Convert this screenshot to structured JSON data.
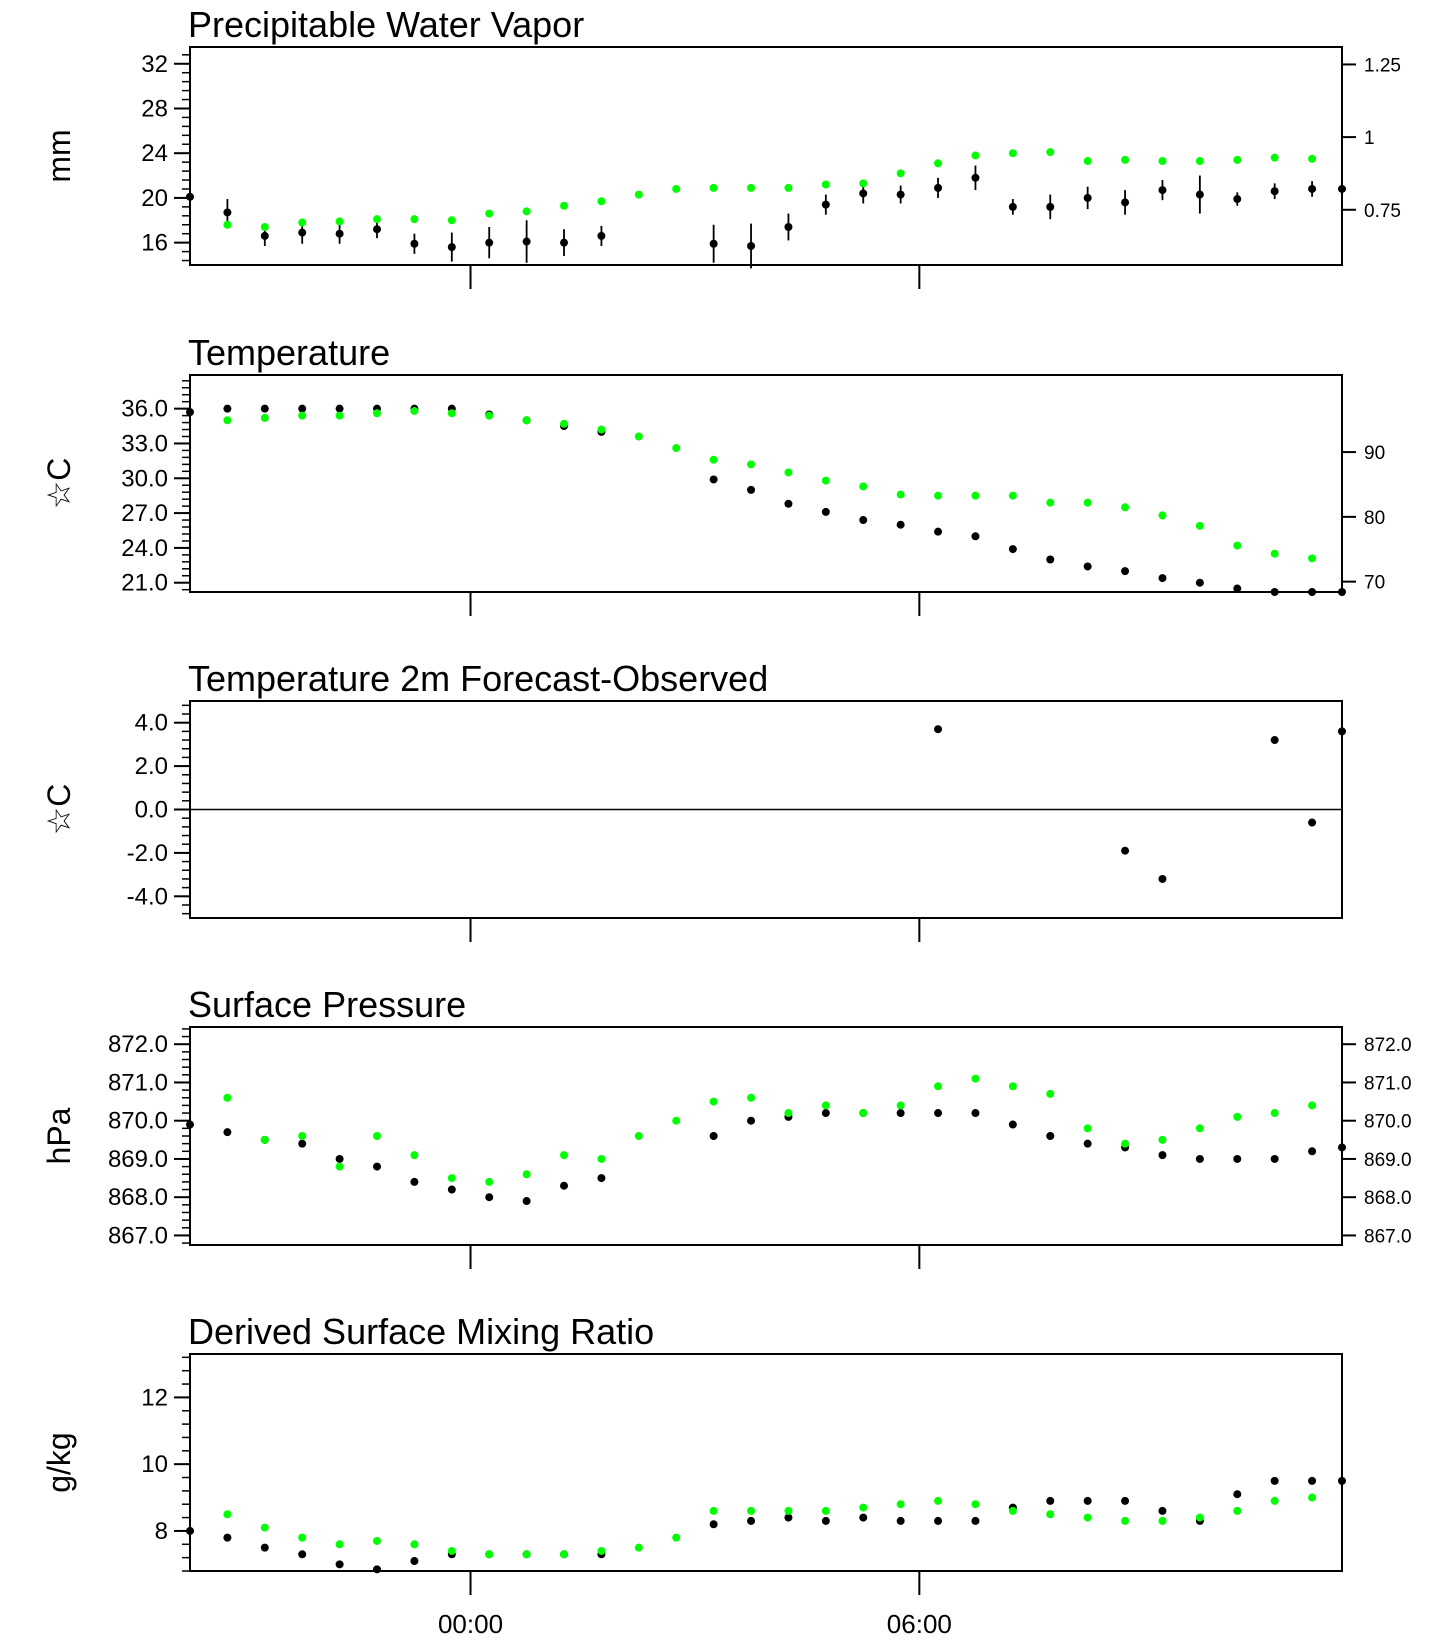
{
  "x_axis": {
    "ticks": [
      {
        "label": "00:00",
        "x": 18
      },
      {
        "label": "06:00",
        "x": 24
      }
    ],
    "range": [
      14.25,
      29.65
    ],
    "observations": [
      14.25,
      14.75,
      15.25,
      15.75,
      16.25,
      16.75,
      17.25,
      17.75,
      18.25,
      18.75,
      19.25,
      19.75,
      20.25,
      20.75,
      21.25,
      21.75,
      22.25,
      22.75,
      23.25,
      23.75,
      24.25,
      24.75,
      25.25,
      25.75,
      26.25,
      26.75,
      27.25,
      27.75,
      28.25,
      28.75,
      29.25,
      29.65
    ]
  },
  "chart_data": [
    {
      "type": "scatter",
      "title": "Precipitable Water Vapor",
      "ylabel": "mm",
      "ylim": [
        14,
        33.5
      ],
      "yticks": [
        16,
        20,
        24,
        28,
        32
      ],
      "ytick_labels": [
        "16",
        "20",
        "24",
        "28",
        "32"
      ],
      "right_axis": {
        "ylim": [
          0.56,
          1.31
        ],
        "ticks": [
          0.75,
          1,
          1.25
        ],
        "labels": [
          "0.75",
          "1",
          "1.25"
        ]
      },
      "series": [
        {
          "color": "#000000",
          "x": [
            14.25,
            14.75,
            15.25,
            15.75,
            16.25,
            16.75,
            17.25,
            17.75,
            18.25,
            18.75,
            19.25,
            19.75,
            21.25,
            21.75,
            22.25,
            22.75,
            23.25,
            23.75,
            24.25,
            24.75,
            25.25,
            25.75,
            26.25,
            26.75,
            27.25,
            27.75,
            28.25,
            28.75,
            29.25,
            29.65
          ],
          "y": [
            20.1,
            18.7,
            16.6,
            16.9,
            16.8,
            17.2,
            15.9,
            15.6,
            16.0,
            16.1,
            16.0,
            16.6,
            15.9,
            15.7,
            17.4,
            19.4,
            20.4,
            20.3,
            20.9,
            21.8,
            19.2,
            19.2,
            20.0,
            19.6,
            20.7,
            20.3,
            19.9,
            20.6,
            20.8,
            20.8
          ],
          "err": [
            0,
            1.2,
            0.9,
            1.0,
            0.9,
            0.8,
            0.9,
            1.3,
            1.4,
            1.9,
            1.2,
            0.9,
            1.7,
            2.0,
            1.2,
            0.9,
            0.9,
            0.8,
            0.9,
            1.1,
            0.7,
            1.1,
            1.0,
            1.1,
            0.9,
            1.7,
            0.6,
            0.7,
            0.7,
            0
          ]
        },
        {
          "color": "#00ff00",
          "x": [
            14.75,
            15.25,
            15.75,
            16.25,
            16.75,
            17.25,
            17.75,
            18.25,
            18.75,
            19.25,
            19.75,
            20.25,
            20.75,
            21.25,
            21.75,
            22.25,
            22.75,
            23.25,
            23.75,
            24.25,
            24.75,
            25.25,
            25.75,
            26.25,
            26.75,
            27.25,
            27.75,
            28.25,
            28.75,
            29.25
          ],
          "y": [
            17.6,
            17.4,
            17.8,
            17.9,
            18.1,
            18.1,
            18.0,
            18.6,
            18.8,
            19.3,
            19.7,
            20.3,
            20.8,
            20.9,
            20.9,
            20.9,
            21.2,
            21.3,
            22.2,
            23.1,
            23.8,
            24.0,
            24.1,
            23.3,
            23.4,
            23.3,
            23.3,
            23.4,
            23.6,
            23.5
          ]
        }
      ]
    },
    {
      "type": "scatter",
      "title": "Temperature",
      "ylabel": "☆C",
      "ylim": [
        20.2,
        38.9
      ],
      "yticks": [
        21,
        24,
        27,
        30,
        33,
        36
      ],
      "ytick_labels": [
        "21.0",
        "24.0",
        "27.0",
        "30.0",
        "33.0",
        "36.0"
      ],
      "right_axis": {
        "ylim": [
          68.4,
          101.9
        ],
        "ticks": [
          70,
          80,
          90
        ],
        "labels": [
          "70",
          "80",
          "90"
        ]
      },
      "series": [
        {
          "color": "#000000",
          "x": [
            14.25,
            14.75,
            15.25,
            15.75,
            16.25,
            16.75,
            17.25,
            17.75,
            18.25,
            18.75,
            19.25,
            19.75,
            21.25,
            21.75,
            22.25,
            22.75,
            23.25,
            23.75,
            24.25,
            24.75,
            25.25,
            25.75,
            26.25,
            26.75,
            27.25,
            27.75,
            28.25,
            28.75,
            29.25,
            29.65
          ],
          "y": [
            35.7,
            36.0,
            36.0,
            36.0,
            36.0,
            36.0,
            36.0,
            36.0,
            35.5,
            35.0,
            34.5,
            34.0,
            29.9,
            29.0,
            27.8,
            27.1,
            26.4,
            26.0,
            25.4,
            25.0,
            23.9,
            23.0,
            22.4,
            22.0,
            21.4,
            21.0,
            20.5,
            20.2,
            20.2,
            20.2
          ]
        },
        {
          "color": "#00ff00",
          "x": [
            14.75,
            15.25,
            15.75,
            16.25,
            16.75,
            17.25,
            17.75,
            18.25,
            18.75,
            19.25,
            19.75,
            20.25,
            20.75,
            21.25,
            21.75,
            22.25,
            22.75,
            23.25,
            23.75,
            24.25,
            24.75,
            25.25,
            25.75,
            26.25,
            26.75,
            27.25,
            27.75,
            28.25,
            28.75,
            29.25
          ],
          "y": [
            35.0,
            35.2,
            35.4,
            35.4,
            35.6,
            35.8,
            35.6,
            35.4,
            35.0,
            34.7,
            34.2,
            33.6,
            32.6,
            31.6,
            31.2,
            30.5,
            29.8,
            29.3,
            28.6,
            28.5,
            28.5,
            28.5,
            27.9,
            27.9,
            27.5,
            26.8,
            25.9,
            24.2,
            23.5,
            23.1
          ]
        }
      ]
    },
    {
      "type": "scatter",
      "title": "Temperature 2m Forecast-Observed",
      "ylabel": "☆C",
      "ylim": [
        -5.0,
        5.0
      ],
      "yticks": [
        -4,
        -2,
        0,
        2,
        4
      ],
      "ytick_labels": [
        "-4.0",
        "-2.0",
        "0.0",
        "2.0",
        "4.0"
      ],
      "zero_line": true,
      "series": [
        {
          "color": "#000000",
          "x": [
            24.25,
            26.75,
            27.25,
            28.75,
            29.25,
            29.65
          ],
          "y": [
            3.7,
            -1.9,
            -3.2,
            3.2,
            -0.6,
            3.6
          ]
        }
      ]
    },
    {
      "type": "scatter",
      "title": "Surface Pressure",
      "ylabel": "hPa",
      "ylim": [
        866.75,
        872.45
      ],
      "yticks": [
        867,
        868,
        869,
        870,
        871,
        872
      ],
      "ytick_labels": [
        "867.0",
        "868.0",
        "869.0",
        "870.0",
        "871.0",
        "872.0"
      ],
      "right_axis": {
        "ylim": [
          866.75,
          872.45
        ],
        "ticks": [
          867,
          868,
          869,
          870,
          871,
          872
        ],
        "labels": [
          "867.0",
          "868.0",
          "869.0",
          "870.0",
          "871.0",
          "872.0"
        ]
      },
      "series": [
        {
          "color": "#000000",
          "x": [
            14.25,
            14.75,
            15.25,
            15.75,
            16.25,
            16.75,
            17.25,
            17.75,
            18.25,
            18.75,
            19.25,
            19.75,
            21.25,
            21.75,
            22.25,
            22.75,
            23.25,
            23.75,
            24.25,
            24.75,
            25.25,
            25.75,
            26.25,
            26.75,
            27.25,
            27.75,
            28.25,
            28.75,
            29.25,
            29.65
          ],
          "y": [
            869.9,
            869.7,
            869.5,
            869.4,
            869.0,
            868.8,
            868.4,
            868.2,
            868.0,
            867.9,
            868.3,
            868.5,
            869.6,
            870.0,
            870.1,
            870.2,
            870.2,
            870.2,
            870.2,
            870.2,
            869.9,
            869.6,
            869.4,
            869.3,
            869.1,
            869.0,
            869.0,
            869.0,
            869.2,
            869.3
          ]
        },
        {
          "color": "#00ff00",
          "x": [
            14.75,
            15.25,
            15.75,
            16.25,
            16.75,
            17.25,
            17.75,
            18.25,
            18.75,
            19.25,
            19.75,
            20.25,
            20.75,
            21.25,
            21.75,
            22.25,
            22.75,
            23.25,
            23.75,
            24.25,
            24.75,
            25.25,
            25.75,
            26.25,
            26.75,
            27.25,
            27.75,
            28.25,
            28.75,
            29.25
          ],
          "y": [
            870.6,
            869.5,
            869.6,
            868.8,
            869.6,
            869.1,
            868.5,
            868.4,
            868.6,
            869.1,
            869.0,
            869.6,
            870.0,
            870.5,
            870.6,
            870.2,
            870.4,
            870.2,
            870.4,
            870.9,
            871.1,
            870.9,
            870.7,
            869.8,
            869.4,
            869.5,
            869.8,
            870.1,
            870.2,
            870.4
          ]
        }
      ]
    },
    {
      "type": "scatter",
      "title": "Derived Surface Mixing Ratio",
      "ylabel": "g/kg",
      "ylim": [
        6.8,
        13.3
      ],
      "yticks": [
        8,
        10,
        12
      ],
      "ytick_labels": [
        "8",
        "10",
        "12"
      ],
      "series": [
        {
          "color": "#000000",
          "x": [
            14.25,
            14.75,
            15.25,
            15.75,
            16.25,
            16.75,
            17.25,
            17.75,
            18.25,
            18.75,
            19.25,
            19.75,
            21.25,
            21.75,
            22.25,
            22.75,
            23.25,
            23.75,
            24.25,
            24.75,
            25.25,
            25.75,
            26.25,
            26.75,
            27.25,
            27.75,
            28.25,
            28.75,
            29.25,
            29.65
          ],
          "y": [
            8.0,
            7.8,
            7.5,
            7.3,
            7.0,
            6.85,
            7.1,
            7.3,
            7.3,
            7.3,
            7.3,
            7.3,
            8.2,
            8.3,
            8.4,
            8.3,
            8.4,
            8.3,
            8.3,
            8.3,
            8.7,
            8.9,
            8.9,
            8.9,
            8.6,
            8.3,
            9.1,
            9.5,
            9.5,
            9.5
          ]
        },
        {
          "color": "#00ff00",
          "x": [
            14.75,
            15.25,
            15.75,
            16.25,
            16.75,
            17.25,
            17.75,
            18.25,
            18.75,
            19.25,
            19.75,
            20.25,
            20.75,
            21.25,
            21.75,
            22.25,
            22.75,
            23.25,
            23.75,
            24.25,
            24.75,
            25.25,
            25.75,
            26.25,
            26.75,
            27.25,
            27.75,
            28.25,
            28.75,
            29.25
          ],
          "y": [
            8.5,
            8.1,
            7.8,
            7.6,
            7.7,
            7.6,
            7.4,
            7.3,
            7.3,
            7.3,
            7.4,
            7.5,
            7.8,
            8.6,
            8.6,
            8.6,
            8.6,
            8.7,
            8.8,
            8.9,
            8.8,
            8.6,
            8.5,
            8.4,
            8.3,
            8.3,
            8.4,
            8.6,
            8.9,
            9.0
          ]
        }
      ]
    }
  ]
}
